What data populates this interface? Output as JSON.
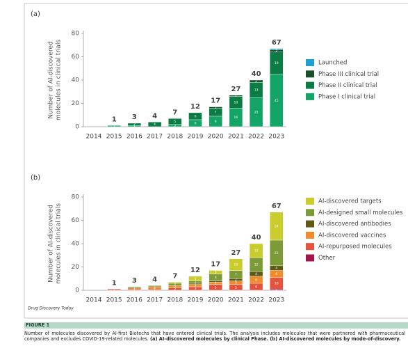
{
  "chart_data": [
    {
      "type": "bar",
      "stacked": true,
      "panel_label": "(a)",
      "ylabel": [
        "Number of AI-discovered",
        "molecules in clinical trials"
      ],
      "categories": [
        "2014",
        "2015",
        "2016",
        "2017",
        "2018",
        "2019",
        "2020",
        "2021",
        "2022",
        "2023"
      ],
      "totals": [
        null,
        1,
        3,
        4,
        7,
        12,
        17,
        27,
        40,
        67
      ],
      "series": [
        {
          "name": "Phase I clinical trial",
          "color": "#13a467",
          "values": [
            0,
            1,
            1,
            0,
            2,
            6,
            9,
            16,
            25,
            45
          ]
        },
        {
          "name": "Phase II clinical trial",
          "color": "#0c7c45",
          "values": [
            0,
            0,
            2,
            4,
            5,
            6,
            7,
            10,
            13,
            19
          ]
        },
        {
          "name": "Phase III clinical trial",
          "color": "#1a4f2c",
          "values": [
            0,
            0,
            0,
            0,
            0,
            0,
            1,
            1,
            2,
            2
          ]
        },
        {
          "name": "Launched",
          "color": "#1b9fd6",
          "values": [
            0,
            0,
            0,
            0,
            0,
            0,
            0,
            0,
            0,
            1
          ]
        }
      ],
      "ylim": [
        0,
        80
      ],
      "yticks": [
        0,
        20,
        40,
        60,
        80
      ]
    },
    {
      "type": "bar",
      "stacked": true,
      "panel_label": "(b)",
      "ylabel": [
        "Number of AI-discovered",
        "molecules in clinical trials"
      ],
      "categories": [
        "2014",
        "2015",
        "2016",
        "2017",
        "2018",
        "2019",
        "2020",
        "2021",
        "2022",
        "2023"
      ],
      "totals": [
        null,
        1,
        3,
        4,
        7,
        12,
        17,
        27,
        40,
        67
      ],
      "series": [
        {
          "name": "Other",
          "color": "#a3164c",
          "values": [
            0,
            0,
            0,
            0,
            0,
            0,
            0,
            0,
            0,
            1
          ]
        },
        {
          "name": "AI-repurposed molecules",
          "color": "#e5533c",
          "values": [
            0,
            1,
            1,
            1,
            2,
            3,
            5,
            5,
            6,
            10
          ]
        },
        {
          "name": "AI-discovered vaccines",
          "color": "#f08a2b",
          "values": [
            0,
            0,
            1,
            2,
            2,
            2,
            2,
            3,
            6,
            6
          ]
        },
        {
          "name": "AI-discovered antibodies",
          "color": "#5d5a16",
          "values": [
            0,
            0,
            0,
            0,
            0,
            1,
            1,
            2,
            4,
            4
          ]
        },
        {
          "name": "AI-designed small molecules",
          "color": "#7c9a38",
          "values": [
            0,
            0,
            1,
            1,
            2,
            2,
            6,
            7,
            12,
            22
          ]
        },
        {
          "name": "AI-discovered targets",
          "color": "#c9cc2c",
          "values": [
            0,
            0,
            0,
            0,
            1,
            4,
            3,
            10,
            12,
            24
          ]
        }
      ],
      "ylim": [
        0,
        80
      ],
      "yticks": [
        0,
        20,
        40,
        60,
        80
      ]
    }
  ],
  "source": "Drug Discovery Today",
  "figure": {
    "label": "FIGURE 1",
    "caption": [
      {
        "text": "Number of molecules discovered by AI-first Biotechs that have entered clinical trials. The analysis includes molecules that were partnered with pharmaceutical companies and excludes COVID-19-related molecules. ",
        "bold": false
      },
      {
        "text": "(a) AI-discovered molecules by clinical Phase. (b) AI-discovered molecules by mode-of-discovery.",
        "bold": true
      }
    ]
  }
}
